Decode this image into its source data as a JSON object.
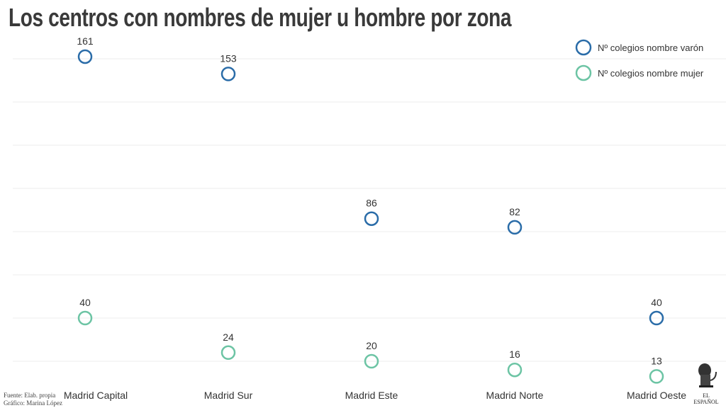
{
  "title": "Los centros con nombres de mujer u hombre por zona",
  "source": "Fuente: Elab. propia",
  "credit": "Gráfico: Marina López",
  "logo": "EL ESPAÑOL",
  "chart_data": {
    "type": "scatter",
    "title": "Los centros con nombres de mujer u hombre por zona",
    "categories": [
      "Madrid Capital",
      "Madrid Sur",
      "Madrid Este",
      "Madrid Norte",
      "Madrid Oeste"
    ],
    "series": [
      {
        "name": "Nº colegios nombre varón",
        "color": "#2a6ca8",
        "values": [
          161,
          153,
          86,
          82,
          40
        ]
      },
      {
        "name": "Nº colegios nombre mujer",
        "color": "#6cc4a4",
        "values": [
          40,
          24,
          20,
          16,
          13
        ]
      }
    ],
    "ylim": [
      0,
      160
    ],
    "grid": true,
    "legend": "top-right"
  }
}
